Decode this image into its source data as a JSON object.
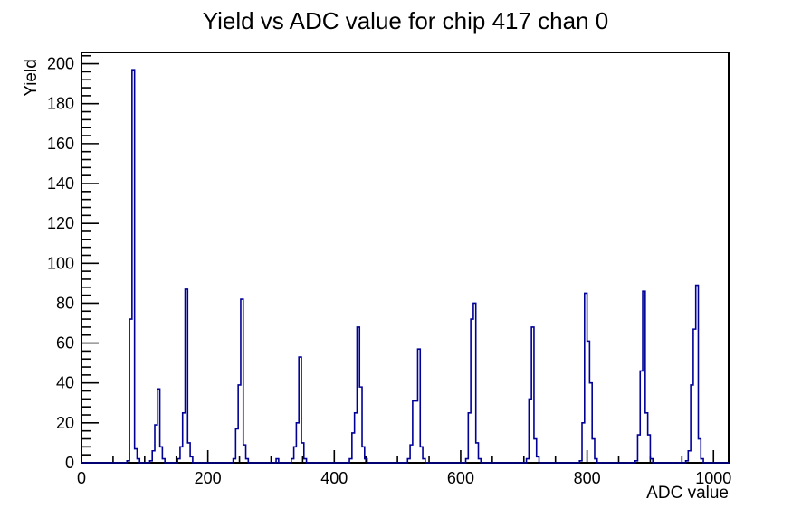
{
  "page": {
    "background": "#ffffff"
  },
  "chart_data": {
    "type": "bar",
    "subtype": "step-histogram",
    "title": "Yield vs ADC value for chip 417 chan 0",
    "xlabel": "ADC value",
    "ylabel": "Yield",
    "xlim": [
      0,
      1024
    ],
    "ylim": [
      0,
      205.7
    ],
    "x_ticks": [
      0,
      200,
      400,
      600,
      800,
      1000
    ],
    "x_minor_step": 50,
    "y_ticks": [
      0,
      20,
      40,
      60,
      80,
      100,
      120,
      140,
      160,
      180,
      200
    ],
    "y_minor_step": 4,
    "grid": false,
    "legend": false,
    "line_color": "#000096",
    "frame_color": "#000000",
    "bin_width": 4,
    "bins": [
      [
        72,
        1
      ],
      [
        76,
        72
      ],
      [
        80,
        197
      ],
      [
        84,
        7
      ],
      [
        88,
        2
      ],
      [
        108,
        1
      ],
      [
        112,
        6
      ],
      [
        116,
        19
      ],
      [
        120,
        37
      ],
      [
        124,
        8
      ],
      [
        128,
        2
      ],
      [
        152,
        2
      ],
      [
        156,
        8
      ],
      [
        160,
        25
      ],
      [
        164,
        87
      ],
      [
        168,
        10
      ],
      [
        172,
        3
      ],
      [
        240,
        2
      ],
      [
        244,
        17
      ],
      [
        248,
        39
      ],
      [
        252,
        82
      ],
      [
        256,
        9
      ],
      [
        260,
        2
      ],
      [
        308,
        2
      ],
      [
        332,
        2
      ],
      [
        336,
        8
      ],
      [
        340,
        20
      ],
      [
        344,
        53
      ],
      [
        348,
        10
      ],
      [
        352,
        2
      ],
      [
        424,
        2
      ],
      [
        428,
        15
      ],
      [
        432,
        25
      ],
      [
        436,
        68
      ],
      [
        440,
        38
      ],
      [
        444,
        8
      ],
      [
        448,
        2
      ],
      [
        516,
        2
      ],
      [
        520,
        9
      ],
      [
        524,
        31
      ],
      [
        528,
        31
      ],
      [
        532,
        57
      ],
      [
        536,
        8
      ],
      [
        540,
        2
      ],
      [
        608,
        2
      ],
      [
        612,
        25
      ],
      [
        616,
        72
      ],
      [
        620,
        80
      ],
      [
        624,
        10
      ],
      [
        628,
        2
      ],
      [
        704,
        2
      ],
      [
        708,
        32
      ],
      [
        712,
        68
      ],
      [
        716,
        12
      ],
      [
        720,
        3
      ],
      [
        788,
        1
      ],
      [
        792,
        20
      ],
      [
        796,
        85
      ],
      [
        800,
        61
      ],
      [
        804,
        40
      ],
      [
        808,
        12
      ],
      [
        812,
        2
      ],
      [
        876,
        1
      ],
      [
        880,
        14
      ],
      [
        884,
        46
      ],
      [
        888,
        86
      ],
      [
        892,
        25
      ],
      [
        896,
        14
      ],
      [
        900,
        2
      ],
      [
        956,
        1
      ],
      [
        960,
        6
      ],
      [
        964,
        39
      ],
      [
        968,
        67
      ],
      [
        972,
        89
      ],
      [
        976,
        12
      ],
      [
        980,
        2
      ]
    ],
    "peaks": [
      {
        "adc": 82,
        "yield": 197
      },
      {
        "adc": 122,
        "yield": 37
      },
      {
        "adc": 166,
        "yield": 87
      },
      {
        "adc": 254,
        "yield": 82
      },
      {
        "adc": 346,
        "yield": 53
      },
      {
        "adc": 438,
        "yield": 68
      },
      {
        "adc": 534,
        "yield": 57
      },
      {
        "adc": 622,
        "yield": 80
      },
      {
        "adc": 714,
        "yield": 68
      },
      {
        "adc": 798,
        "yield": 85
      },
      {
        "adc": 890,
        "yield": 86
      },
      {
        "adc": 974,
        "yield": 89
      }
    ]
  }
}
